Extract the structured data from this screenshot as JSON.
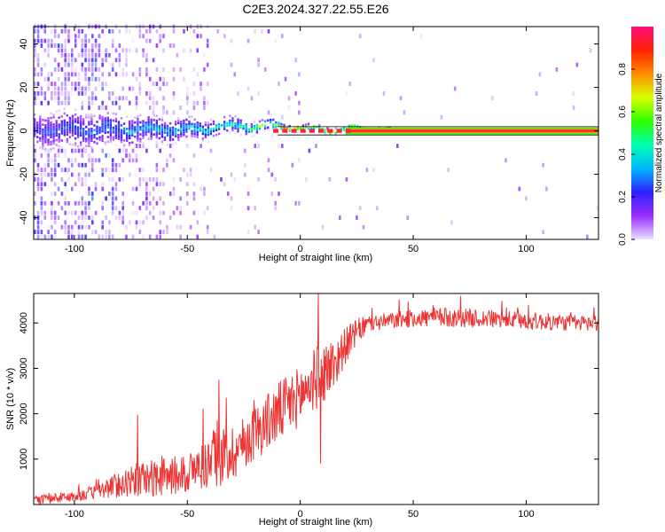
{
  "title": "C2E3.2024.327.22.55.E26",
  "chart_data": [
    {
      "type": "heatmap",
      "xlabel": "Height of straight line (km)",
      "ylabel": "Frequency (Hz)",
      "xlim": [
        -118,
        132
      ],
      "ylim": [
        -50,
        48
      ],
      "x_ticks": [
        -100,
        -50,
        0,
        50,
        100
      ],
      "y_ticks": [
        -40,
        -20,
        0,
        20,
        40
      ],
      "grid": false,
      "description_of_values": "Spectral amplitude concentrated near 0 Hz; broad noisy spread for heights below about -40 km, collapsing to a narrow high-amplitude band (about 0.9 to 1.0) along 0 Hz for heights above about 25 km",
      "colorbar": {
        "label": "Normalized spectral amplitude",
        "range": [
          0.0,
          1.0
        ],
        "ticks": [
          0.0,
          0.2,
          0.4,
          0.6,
          0.8
        ],
        "colormap": [
          "#e8e0ff",
          "#9a2cff",
          "#2d22ff",
          "#00b8ff",
          "#00ffb0",
          "#30ff00",
          "#d8ff00",
          "#ff8c00",
          "#ff2200",
          "#ff0f7f"
        ]
      },
      "band": {
        "center_hz": 0,
        "x_points": [
          -118,
          -100,
          -80,
          -60,
          -40,
          -25,
          -10,
          0,
          10,
          25,
          50,
          132
        ],
        "half_width_hz": [
          6,
          6,
          5,
          4,
          3,
          2.5,
          1.5,
          1.2,
          1.2,
          1,
          0.8,
          0.8
        ],
        "peak_amplitude": [
          0.25,
          0.3,
          0.35,
          0.38,
          0.45,
          0.55,
          0.7,
          0.9,
          0.85,
          0.95,
          1.0,
          1.0
        ]
      }
    },
    {
      "type": "line",
      "xlabel": "Height of straight line (km)",
      "ylabel": "SNR (10 * v/v)",
      "xlim": [
        -118,
        132
      ],
      "ylim": [
        0,
        4650
      ],
      "x_ticks": [
        -100,
        -50,
        0,
        50,
        100
      ],
      "y_ticks": [
        1000,
        2000,
        3000,
        4000
      ],
      "grid": false,
      "series": [
        {
          "color": "#ee3333",
          "x_points": [
            -118,
            -100,
            -90,
            -80,
            -70,
            -60,
            -50,
            -45,
            -40,
            -35,
            -30,
            -25,
            -20,
            -15,
            -10,
            -5,
            0,
            5,
            10,
            15,
            20,
            25,
            30,
            40,
            50,
            60,
            80,
            100,
            120,
            132
          ],
          "baseline": [
            100,
            180,
            280,
            450,
            560,
            600,
            700,
            800,
            950,
            1050,
            1150,
            1350,
            1600,
            1800,
            2000,
            2200,
            2400,
            2700,
            2900,
            3100,
            3500,
            3800,
            3980,
            4050,
            4100,
            4120,
            4100,
            4050,
            4000,
            4000
          ],
          "noise_amplitude": [
            100,
            120,
            160,
            300,
            400,
            420,
            450,
            500,
            600,
            650,
            650,
            600,
            600,
            650,
            700,
            700,
            650,
            700,
            700,
            600,
            400,
            300,
            200,
            180,
            200,
            220,
            200,
            200,
            180,
            180
          ],
          "spikes": [
            {
              "x": -36,
              "y": 2750
            },
            {
              "x": -72,
              "y": 1980
            },
            {
              "x": 8,
              "y": 4650
            },
            {
              "x": 9,
              "y": 900
            },
            {
              "x": 71,
              "y": 4600
            }
          ]
        }
      ]
    }
  ]
}
